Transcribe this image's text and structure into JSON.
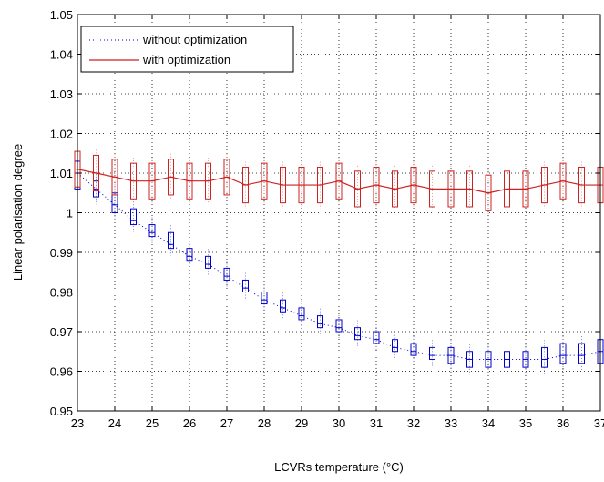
{
  "chart_data": {
    "type": "box",
    "xlabel": "LCVRs temperature (°C)",
    "ylabel": "Linear polarisation degree",
    "xlim": [
      23,
      37
    ],
    "ylim": [
      0.95,
      1.05
    ],
    "xticks": [
      "23",
      "24",
      "25",
      "26",
      "27",
      "28",
      "29",
      "30",
      "31",
      "32",
      "33",
      "34",
      "35",
      "36",
      "37"
    ],
    "yticks": [
      "0.95",
      "0.96",
      "0.97",
      "0.98",
      "0.99",
      "1",
      "1.01",
      "1.02",
      "1.03",
      "1.04",
      "1.05"
    ],
    "grid": true,
    "legend_position": "top-left",
    "x": [
      23,
      23.5,
      24,
      24.5,
      25,
      25.5,
      26,
      26.5,
      27,
      27.5,
      28,
      28.5,
      29,
      29.5,
      30,
      30.5,
      31,
      31.5,
      32,
      32.5,
      33,
      33.5,
      34,
      34.5,
      35,
      35.5,
      36,
      36.5,
      37
    ],
    "series": [
      {
        "name": "without optimization",
        "color": "#0000cc",
        "style": "dotted",
        "median": [
          1.01,
          1.006,
          1.002,
          0.998,
          0.995,
          0.992,
          0.989,
          0.987,
          0.984,
          0.981,
          0.978,
          0.976,
          0.974,
          0.972,
          0.971,
          0.969,
          0.968,
          0.966,
          0.965,
          0.964,
          0.964,
          0.963,
          0.963,
          0.963,
          0.963,
          0.963,
          0.964,
          0.964,
          0.965
        ],
        "box_low": [
          1.006,
          1.004,
          1.0,
          0.997,
          0.994,
          0.991,
          0.988,
          0.986,
          0.983,
          0.98,
          0.977,
          0.975,
          0.973,
          0.971,
          0.97,
          0.968,
          0.967,
          0.965,
          0.964,
          0.963,
          0.962,
          0.961,
          0.961,
          0.961,
          0.961,
          0.961,
          0.962,
          0.962,
          0.962
        ],
        "box_high": [
          1.013,
          1.008,
          1.005,
          1.001,
          0.997,
          0.995,
          0.991,
          0.989,
          0.986,
          0.983,
          0.98,
          0.978,
          0.976,
          0.974,
          0.973,
          0.971,
          0.97,
          0.968,
          0.967,
          0.966,
          0.966,
          0.965,
          0.965,
          0.965,
          0.965,
          0.966,
          0.967,
          0.967,
          0.968
        ]
      },
      {
        "name": "with optimization",
        "color": "#cc2222",
        "style": "solid",
        "median": [
          1.011,
          1.01,
          1.009,
          1.008,
          1.008,
          1.009,
          1.008,
          1.008,
          1.009,
          1.007,
          1.008,
          1.007,
          1.007,
          1.007,
          1.008,
          1.006,
          1.007,
          1.006,
          1.007,
          1.006,
          1.006,
          1.006,
          1.005,
          1.006,
          1.006,
          1.007,
          1.008,
          1.007,
          1.007
        ]
      }
    ]
  }
}
